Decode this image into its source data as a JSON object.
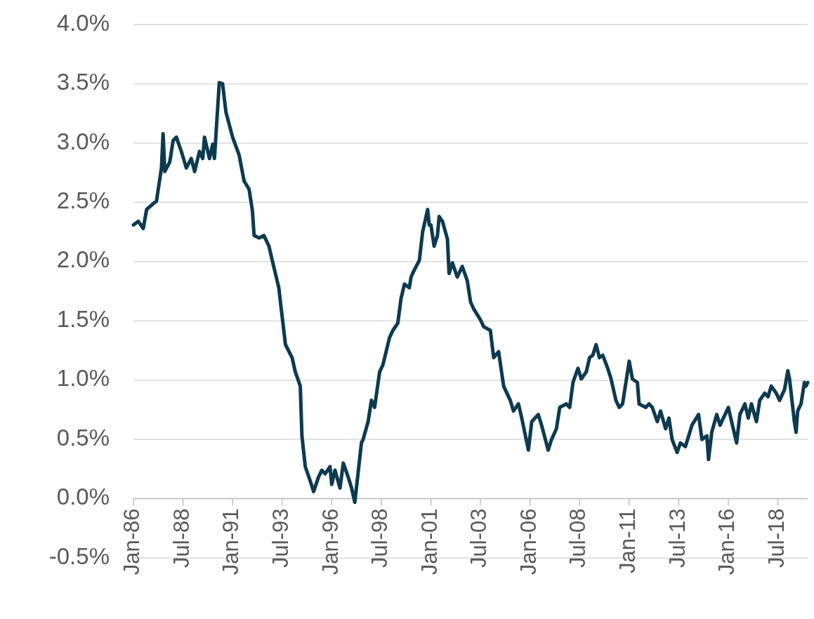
{
  "chart_data": {
    "type": "line",
    "x": [
      "1986-01",
      "1986-04",
      "1986-07",
      "1986-09",
      "1987-01",
      "1987-03",
      "1987-06",
      "1987-07",
      "1987-08",
      "1987-11",
      "1988-01",
      "1988-03",
      "1988-06",
      "1988-09",
      "1988-12",
      "1989-02",
      "1989-05",
      "1989-07",
      "1989-08",
      "1989-11",
      "1990-01",
      "1990-02",
      "1990-05",
      "1990-07",
      "1990-09",
      "1991-01",
      "1991-05",
      "1991-08",
      "1991-11",
      "1992-01",
      "1992-02",
      "1992-05",
      "1992-08",
      "1992-11",
      "1993-01",
      "1993-05",
      "1993-07",
      "1993-09",
      "1994-01",
      "1994-03",
      "1994-06",
      "1994-07",
      "1994-09",
      "1994-12",
      "1995-02",
      "1995-05",
      "1995-07",
      "1995-09",
      "1995-12",
      "1996-01",
      "1996-03",
      "1996-06",
      "1996-08",
      "1996-11",
      "1997-01",
      "1997-03",
      "1997-07",
      "1997-08",
      "1997-11",
      "1998-01",
      "1998-03",
      "1998-06",
      "1998-08",
      "1998-12",
      "1999-02",
      "1999-05",
      "1999-07",
      "1999-09",
      "1999-12",
      "2000-01",
      "2000-03",
      "2000-06",
      "2000-08",
      "2000-11",
      "2000-12",
      "2001-01",
      "2001-03",
      "2001-05",
      "2001-06",
      "2001-08",
      "2001-11",
      "2001-12",
      "2002-02",
      "2002-05",
      "2002-08",
      "2002-11",
      "2003-01",
      "2003-03",
      "2003-07",
      "2003-09",
      "2004-01",
      "2004-03",
      "2004-06",
      "2004-09",
      "2005-01",
      "2005-03",
      "2005-06",
      "2005-08",
      "2005-12",
      "2006-02",
      "2006-06",
      "2006-08",
      "2006-12",
      "2007-02",
      "2007-05",
      "2007-07",
      "2007-11",
      "2008-01",
      "2008-03",
      "2008-06",
      "2008-08",
      "2008-11",
      "2009-01",
      "2009-03",
      "2009-05",
      "2009-07",
      "2009-09",
      "2009-12",
      "2010-02",
      "2010-05",
      "2010-07",
      "2010-09",
      "2010-11",
      "2011-01",
      "2011-03",
      "2011-06",
      "2011-07",
      "2011-11",
      "2012-01",
      "2012-03",
      "2012-06",
      "2012-08",
      "2012-11",
      "2013-01",
      "2013-03",
      "2013-06",
      "2013-08",
      "2013-11",
      "2014-01",
      "2014-03",
      "2014-07",
      "2014-09",
      "2014-12",
      "2015-01",
      "2015-03",
      "2015-06",
      "2015-08",
      "2015-11",
      "2016-01",
      "2016-03",
      "2016-06",
      "2016-08",
      "2016-11",
      "2017-01",
      "2017-03",
      "2017-06",
      "2017-08",
      "2017-11",
      "2018-01",
      "2018-03",
      "2018-06",
      "2018-08",
      "2018-11",
      "2019-01",
      "2019-02",
      "2019-05",
      "2019-06",
      "2019-07",
      "2019-09",
      "2019-11",
      "2019-12",
      "2020-01"
    ],
    "series": [
      {
        "color": "#0d3a4f",
        "values": [
          2.31,
          2.34,
          2.28,
          2.44,
          2.49,
          2.51,
          2.79,
          3.08,
          2.76,
          2.84,
          3.02,
          3.05,
          2.93,
          2.79,
          2.87,
          2.76,
          2.93,
          2.87,
          3.05,
          2.87,
          2.99,
          2.87,
          3.51,
          3.5,
          3.26,
          3.05,
          2.9,
          2.68,
          2.61,
          2.43,
          2.22,
          2.2,
          2.22,
          2.13,
          2.01,
          1.78,
          1.54,
          1.3,
          1.19,
          1.07,
          0.95,
          0.53,
          0.27,
          0.15,
          0.06,
          0.18,
          0.24,
          0.21,
          0.27,
          0.12,
          0.24,
          0.09,
          0.3,
          0.18,
          0.09,
          -0.03,
          0.47,
          0.5,
          0.65,
          0.83,
          0.77,
          1.07,
          1.13,
          1.36,
          1.42,
          1.48,
          1.69,
          1.81,
          1.78,
          1.87,
          1.93,
          2.01,
          2.25,
          2.44,
          2.31,
          2.31,
          2.13,
          2.22,
          2.38,
          2.34,
          2.19,
          1.9,
          1.99,
          1.87,
          1.96,
          1.84,
          1.66,
          1.6,
          1.51,
          1.45,
          1.42,
          1.19,
          1.24,
          0.95,
          0.83,
          0.74,
          0.8,
          0.68,
          0.41,
          0.65,
          0.71,
          0.62,
          0.41,
          0.5,
          0.59,
          0.77,
          0.8,
          0.77,
          0.98,
          1.1,
          1.01,
          1.07,
          1.19,
          1.21,
          1.3,
          1.19,
          1.21,
          1.1,
          1.01,
          0.83,
          0.77,
          0.8,
          0.98,
          1.16,
          1.01,
          0.98,
          0.8,
          0.77,
          0.8,
          0.77,
          0.65,
          0.74,
          0.59,
          0.68,
          0.5,
          0.39,
          0.47,
          0.44,
          0.53,
          0.62,
          0.71,
          0.5,
          0.53,
          0.33,
          0.56,
          0.71,
          0.62,
          0.71,
          0.77,
          0.65,
          0.47,
          0.71,
          0.8,
          0.68,
          0.8,
          0.65,
          0.83,
          0.89,
          0.86,
          0.95,
          0.89,
          0.83,
          0.92,
          1.08,
          1.01,
          0.65,
          0.56,
          0.74,
          0.8,
          0.98,
          0.95,
          0.98
        ]
      }
    ],
    "xlim": [
      "1986-01",
      "2020-01"
    ],
    "xticks": [
      {
        "value": "1986-01",
        "label": "Jan-86"
      },
      {
        "value": "1988-07",
        "label": "Jul-88"
      },
      {
        "value": "1991-01",
        "label": "Jan-91"
      },
      {
        "value": "1993-07",
        "label": "Jul-93"
      },
      {
        "value": "1996-01",
        "label": "Jan-96"
      },
      {
        "value": "1998-07",
        "label": "Jul-98"
      },
      {
        "value": "2001-01",
        "label": "Jan-01"
      },
      {
        "value": "2003-07",
        "label": "Jul-03"
      },
      {
        "value": "2006-01",
        "label": "Jan-06"
      },
      {
        "value": "2008-07",
        "label": "Jul-08"
      },
      {
        "value": "2011-01",
        "label": "Jan-11"
      },
      {
        "value": "2013-07",
        "label": "Jul-13"
      },
      {
        "value": "2016-01",
        "label": "Jan-16"
      },
      {
        "value": "2018-07",
        "label": "Jul-18"
      }
    ],
    "ylim": [
      -0.5,
      4.0
    ],
    "yticks": [
      {
        "value": -0.5,
        "label": "-0.5%"
      },
      {
        "value": 0,
        "label": "0.0%"
      },
      {
        "value": 0.5,
        "label": "0.5%"
      },
      {
        "value": 1,
        "label": "1.0%"
      },
      {
        "value": 1.5,
        "label": "1.5%"
      },
      {
        "value": 2,
        "label": "2.0%"
      },
      {
        "value": 2.5,
        "label": "2.5%"
      },
      {
        "value": 3,
        "label": "3.0%"
      },
      {
        "value": 3.5,
        "label": "3.5%"
      },
      {
        "value": 4,
        "label": "4.0%"
      }
    ],
    "grid": "y",
    "marker": "none",
    "line_style": "solid"
  }
}
